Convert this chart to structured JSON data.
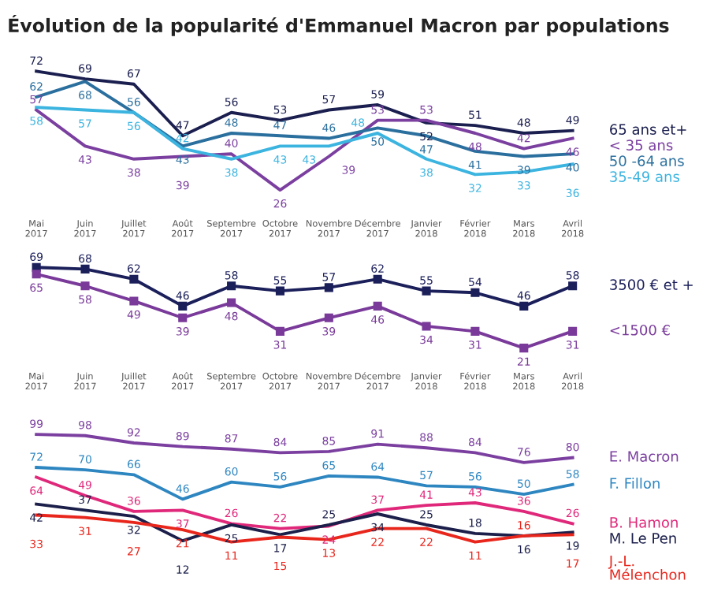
{
  "chart_data": [
    {
      "type": "line",
      "title": "Évolution de la popularité d'Emmanuel Macron par populations",
      "categories": [
        "Mai\n2017",
        "Juin\n2017",
        "Juillet\n2017",
        "Août\n2017",
        "Septembre\n2017",
        "Octobre\n2017",
        "Novembre\n2017",
        "Décembre\n2017",
        "Janvier\n2018",
        "Février\n2018",
        "Mars\n2018",
        "Avril\n2018"
      ],
      "data_labels": true,
      "tick_labels": "x",
      "legend": false,
      "grid": false,
      "series": [
        {
          "name": "65 ans et+",
          "color": "#1b1f4f",
          "values": [
            72,
            69,
            67,
            47,
            56,
            53,
            57,
            59,
            52,
            51,
            48,
            49
          ]
        },
        {
          "name": "< 35 ans",
          "color": "#7b3fa0",
          "values": [
            57,
            43,
            38,
            39,
            40,
            26,
            39,
            53,
            53,
            48,
            42,
            46
          ]
        },
        {
          "name": "50 -64 ans",
          "color": "#2a6f9e",
          "values": [
            62,
            68,
            56,
            43,
            48,
            47,
            46,
            50,
            47,
            41,
            39,
            40
          ]
        },
        {
          "name": "35-49 ans",
          "color": "#3cb4e0",
          "values": [
            58,
            57,
            56,
            42,
            38,
            43,
            43,
            48,
            38,
            32,
            33,
            36
          ]
        }
      ]
    },
    {
      "type": "line",
      "categories": [
        "Mai\n2017",
        "Juin\n2017",
        "Juillet\n2017",
        "Août\n2017",
        "Septembre\n2017",
        "Octobre\n2017",
        "Novembre\n2017",
        "Décembre\n2017",
        "Janvier\n2018",
        "Février\n2018",
        "Mars\n2018",
        "Avril\n2018"
      ],
      "data_labels": true,
      "tick_labels": "x",
      "legend": false,
      "grid": false,
      "marker": "square",
      "series": [
        {
          "name": "3500 € et +",
          "color": "#1b1f5a",
          "values": [
            69,
            68,
            62,
            46,
            58,
            55,
            57,
            62,
            55,
            54,
            46,
            58
          ]
        },
        {
          "name": "<1500 €",
          "color": "#7a3a9a",
          "values": [
            65,
            58,
            49,
            39,
            48,
            31,
            39,
            46,
            34,
            31,
            21,
            31
          ]
        }
      ]
    },
    {
      "type": "line",
      "categories": [
        null,
        null,
        null,
        null,
        null,
        null,
        null,
        null,
        null,
        null,
        null,
        null
      ],
      "data_labels": true,
      "tick_labels": false,
      "legend": false,
      "grid": false,
      "series": [
        {
          "name": "E. Macron",
          "color": "#7b3fa0",
          "values": [
            99,
            98,
            92,
            89,
            87,
            84,
            85,
            91,
            88,
            84,
            76,
            80
          ]
        },
        {
          "name": "F. Fillon",
          "color": "#2e86c1",
          "values": [
            72,
            70,
            66,
            46,
            60,
            56,
            65,
            64,
            57,
            56,
            50,
            58
          ]
        },
        {
          "name": "B. Hamon",
          "color": "#e0287a",
          "values": [
            64,
            49,
            36,
            37,
            26,
            22,
            24,
            37,
            41,
            43,
            36,
            26
          ]
        },
        {
          "name": "M. Le Pen",
          "color": "#1b1f4a",
          "values": [
            42,
            37,
            32,
            12,
            25,
            17,
            25,
            34,
            25,
            18,
            16,
            19
          ]
        },
        {
          "name": "J.-L.\nMélenchon",
          "color": "#e8261c",
          "values": [
            33,
            31,
            27,
            21,
            11,
            15,
            13,
            22,
            22,
            11,
            16,
            17
          ]
        }
      ]
    }
  ]
}
